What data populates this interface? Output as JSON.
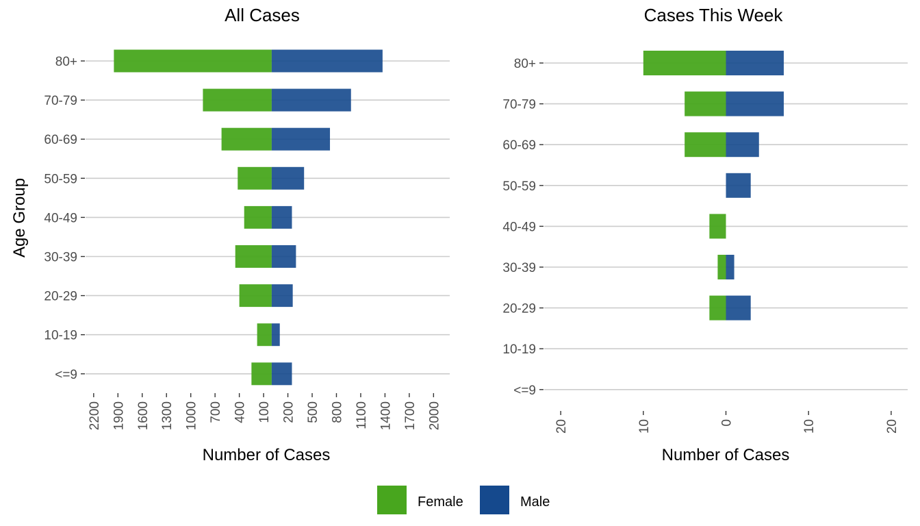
{
  "chart_data": [
    {
      "type": "bar",
      "orientation": "horizontal-population-pyramid",
      "title": "All Cases",
      "xlabel": "Number of Cases",
      "ylabel": "Age Group",
      "categories": [
        "80+",
        "70-79",
        "60-69",
        "50-59",
        "40-49",
        "30-39",
        "20-29",
        "10-19",
        "<=9"
      ],
      "series": [
        {
          "name": "Female",
          "side": "left",
          "values": [
            1950,
            850,
            620,
            420,
            340,
            450,
            400,
            180,
            250
          ]
        },
        {
          "name": "Male",
          "side": "right",
          "values": [
            1370,
            980,
            720,
            400,
            250,
            300,
            260,
            100,
            250
          ]
        }
      ],
      "xlim": [
        -2300,
        2200
      ],
      "ticks": [
        {
          "value": -2200,
          "label": "2200"
        },
        {
          "value": -1900,
          "label": "1900"
        },
        {
          "value": -1600,
          "label": "1600"
        },
        {
          "value": -1300,
          "label": "1300"
        },
        {
          "value": -1000,
          "label": "1000"
        },
        {
          "value": -700,
          "label": "700"
        },
        {
          "value": -400,
          "label": "400"
        },
        {
          "value": -100,
          "label": "100"
        },
        {
          "value": 200,
          "label": "200"
        },
        {
          "value": 500,
          "label": "500"
        },
        {
          "value": 800,
          "label": "800"
        },
        {
          "value": 1100,
          "label": "1100"
        },
        {
          "value": 1400,
          "label": "1400"
        },
        {
          "value": 1700,
          "label": "1700"
        },
        {
          "value": 2000,
          "label": "2000"
        }
      ],
      "grid": "horizontal"
    },
    {
      "type": "bar",
      "orientation": "horizontal-population-pyramid",
      "title": "Cases This Week",
      "xlabel": "Number of Cases",
      "ylabel": "",
      "categories": [
        "80+",
        "70-79",
        "60-69",
        "50-59",
        "40-49",
        "30-39",
        "20-29",
        "10-19",
        "<=9"
      ],
      "series": [
        {
          "name": "Female",
          "side": "left",
          "values": [
            10,
            5,
            5,
            0,
            2,
            1,
            2,
            0,
            0
          ]
        },
        {
          "name": "Male",
          "side": "right",
          "values": [
            7,
            7,
            4,
            3,
            0,
            1,
            3,
            0,
            0
          ]
        }
      ],
      "xlim": [
        -22,
        22
      ],
      "ticks": [
        {
          "value": -20,
          "label": "20"
        },
        {
          "value": -10,
          "label": "10"
        },
        {
          "value": 0,
          "label": "0"
        },
        {
          "value": 10,
          "label": "10"
        },
        {
          "value": 20,
          "label": "20"
        }
      ],
      "grid": "horizontal"
    }
  ],
  "legend": {
    "position": "bottom",
    "items": [
      {
        "label": "Female",
        "color": "#48a61e"
      },
      {
        "label": "Male",
        "color": "#15498d"
      }
    ]
  },
  "colors": {
    "female": "#48a61e",
    "male": "#15498d"
  }
}
